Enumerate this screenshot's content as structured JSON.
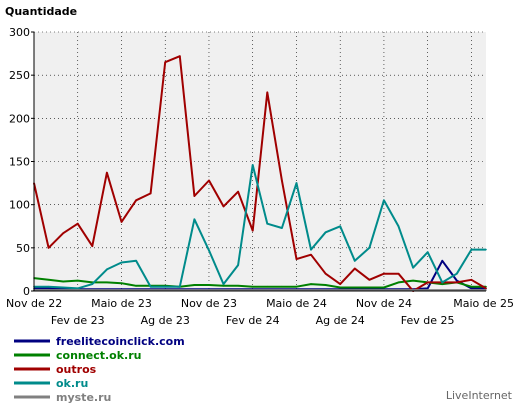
{
  "chart_data": {
    "type": "line",
    "ylabel": "Quantidade",
    "ylim": [
      0,
      300
    ],
    "yticks": [
      0,
      50,
      100,
      150,
      200,
      250,
      300
    ],
    "grid": true,
    "legend_position": "bottom-left",
    "brand": "LiveInternet",
    "x_labels_top": [
      "Nov de 22",
      "Maio de 23",
      "Nov de 23",
      "Maio de 24",
      "Nov de 24",
      "Maio de 25"
    ],
    "x_labels_bottom": [
      "Fev de 23",
      "Ag de 23",
      "Fev de 24",
      "Ag de 24",
      "Fev de 25"
    ],
    "x_count": 32,
    "series": [
      {
        "name": "freelitecoinclick.com",
        "color": "#000080",
        "values": [
          3,
          3,
          2,
          2,
          2,
          2,
          2,
          2,
          2,
          2,
          2,
          2,
          2,
          2,
          2,
          2,
          2,
          2,
          2,
          2,
          2,
          2,
          2,
          2,
          2,
          2,
          2,
          3,
          35,
          12,
          3,
          3
        ]
      },
      {
        "name": "connect.ok.ru",
        "color": "#008000",
        "values": [
          15,
          13,
          11,
          12,
          10,
          10,
          9,
          6,
          6,
          6,
          5,
          7,
          7,
          6,
          6,
          5,
          5,
          5,
          5,
          8,
          7,
          4,
          4,
          4,
          4,
          10,
          12,
          10,
          8,
          10,
          5,
          5
        ]
      },
      {
        "name": "outros",
        "color": "#a00000",
        "values": [
          125,
          50,
          67,
          78,
          52,
          137,
          80,
          105,
          113,
          265,
          272,
          110,
          128,
          98,
          115,
          70,
          230,
          128,
          37,
          42,
          20,
          8,
          26,
          13,
          20,
          20,
          0,
          10,
          10,
          10,
          13,
          3
        ]
      },
      {
        "name": "ok.ru",
        "color": "#008b8b",
        "values": [
          5,
          5,
          4,
          3,
          8,
          25,
          33,
          35,
          5,
          5,
          5,
          83,
          47,
          8,
          30,
          146,
          78,
          73,
          125,
          48,
          68,
          75,
          35,
          50,
          105,
          75,
          27,
          45,
          10,
          20,
          48,
          48
        ]
      },
      {
        "name": "myste.ru",
        "color": "#808080",
        "values": [
          1,
          1,
          1,
          1,
          1,
          1,
          1,
          1,
          1,
          1,
          1,
          1,
          1,
          1,
          1,
          1,
          1,
          1,
          1,
          1,
          1,
          1,
          1,
          1,
          1,
          1,
          1,
          1,
          1,
          1,
          1,
          1
        ]
      }
    ]
  }
}
